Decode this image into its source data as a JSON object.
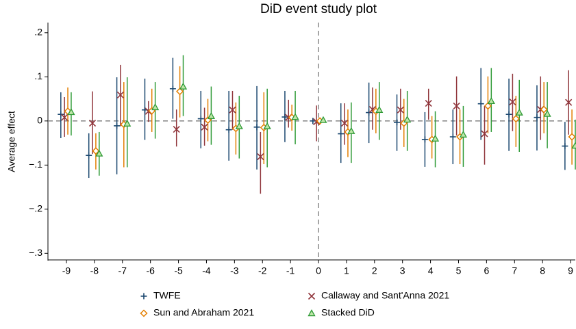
{
  "chart_data": {
    "type": "event-study",
    "title": "DiD event study plot",
    "y_label": "Average effect",
    "x": [
      -9,
      -8,
      -7,
      -6,
      -5,
      -4,
      -3,
      -2,
      -1,
      0,
      1,
      2,
      3,
      4,
      5,
      6,
      7,
      8,
      9
    ],
    "xlim": [
      -9.66,
      9.17
    ],
    "xticks": [
      -9,
      -8,
      -7,
      -6,
      -5,
      -4,
      -3,
      -2,
      -1,
      0,
      1,
      2,
      3,
      4,
      5,
      6,
      7,
      8,
      9
    ],
    "ylim": [
      -0.315,
      0.223
    ],
    "yticks": [
      {
        "value": 0.2,
        "label": ".2"
      },
      {
        "value": 0.1,
        "label": ".1"
      },
      0,
      {
        "value": -0.1,
        "label": "−.1"
      },
      {
        "value": -0.2,
        "label": "−.2"
      },
      {
        "value": -0.3,
        "label": "−.3"
      }
    ],
    "reference_lines": {
      "x": 0,
      "y": 0
    },
    "series": [
      {
        "name": "TWFE",
        "color": "#1a476f",
        "marker": "plus",
        "values": [
          0.015,
          -0.078,
          -0.011,
          0.025,
          0.073,
          0.005,
          -0.02,
          -0.014,
          0.009,
          0,
          -0.029,
          0.019,
          -0.003,
          -0.042,
          -0.036,
          0.039,
          0.015,
          0.008,
          -0.057
        ],
        "lower": [
          -0.039,
          -0.129,
          -0.121,
          -0.043,
          0.005,
          -0.062,
          -0.09,
          -0.11,
          -0.048,
          0,
          -0.095,
          -0.05,
          -0.068,
          -0.104,
          -0.098,
          -0.043,
          -0.068,
          -0.067,
          -0.111
        ],
        "upper": [
          0.065,
          -0.028,
          0.099,
          0.096,
          0.143,
          0.068,
          0.068,
          0.079,
          0.068,
          0,
          0.04,
          0.087,
          0.06,
          0.02,
          0.026,
          0.12,
          0.096,
          0.081,
          -0.002
        ]
      },
      {
        "name": "Callaway and Sant'Anna 2021",
        "color": "#90353b",
        "marker": "cross",
        "values": [
          0.008,
          -0.005,
          0.059,
          0.022,
          -0.019,
          -0.014,
          0.025,
          -0.081,
          0.008,
          -0.002,
          -0.005,
          0.026,
          0.025,
          0.04,
          0.034,
          -0.029,
          0.043,
          0.026,
          0.042
        ],
        "lower": [
          -0.036,
          -0.075,
          -0.012,
          -0.002,
          -0.058,
          -0.056,
          -0.02,
          -0.165,
          -0.015,
          -0.046,
          -0.054,
          -0.02,
          -0.02,
          0.003,
          -0.033,
          -0.099,
          -0.023,
          -0.043,
          -0.031
        ],
        "upper": [
          0.054,
          0.067,
          0.127,
          0.045,
          0.026,
          0.03,
          0.068,
          -0.025,
          0.048,
          0.035,
          0.04,
          0.076,
          0.073,
          0.073,
          0.101,
          0.034,
          0.107,
          0.101,
          0.115
        ]
      },
      {
        "name": "Sun and Abraham 2021",
        "color": "#e37e00",
        "marker": "diamond",
        "values": [
          0.022,
          -0.068,
          -0.008,
          0.023,
          0.067,
          0.002,
          -0.017,
          -0.015,
          0.008,
          0,
          -0.025,
          0.022,
          -0.005,
          -0.042,
          -0.036,
          0.034,
          0.005,
          0.026,
          -0.036
        ],
        "lower": [
          -0.031,
          -0.11,
          -0.105,
          -0.025,
          0.008,
          -0.046,
          -0.076,
          -0.098,
          -0.022,
          -0.002,
          -0.082,
          -0.028,
          -0.059,
          -0.085,
          -0.098,
          -0.028,
          -0.059,
          -0.028,
          -0.099
        ],
        "upper": [
          0.076,
          -0.028,
          0.088,
          0.073,
          0.124,
          0.05,
          0.042,
          0.065,
          0.037,
          0.002,
          0.026,
          0.073,
          0.05,
          0.011,
          0.026,
          0.101,
          0.057,
          0.088,
          0.026
        ]
      },
      {
        "name": "Stacked DiD",
        "color": "#2e9a36",
        "marker": "triangle",
        "values": [
          0.02,
          -0.074,
          -0.006,
          0.031,
          0.078,
          0.011,
          -0.012,
          -0.012,
          0.009,
          0.002,
          -0.023,
          0.025,
          0.003,
          -0.04,
          -0.031,
          0.045,
          0.019,
          0.016,
          -0.056
        ],
        "lower": [
          -0.033,
          -0.124,
          -0.105,
          -0.04,
          0.011,
          -0.054,
          -0.085,
          -0.105,
          -0.053,
          -0.003,
          -0.095,
          -0.043,
          -0.068,
          -0.105,
          -0.104,
          -0.025,
          -0.07,
          -0.062,
          -0.11
        ],
        "upper": [
          0.065,
          -0.025,
          0.099,
          0.088,
          0.149,
          0.078,
          0.057,
          0.073,
          0.068,
          0.005,
          0.042,
          0.088,
          0.068,
          0.022,
          0.034,
          0.12,
          0.093,
          0.088,
          0.003
        ]
      }
    ]
  }
}
